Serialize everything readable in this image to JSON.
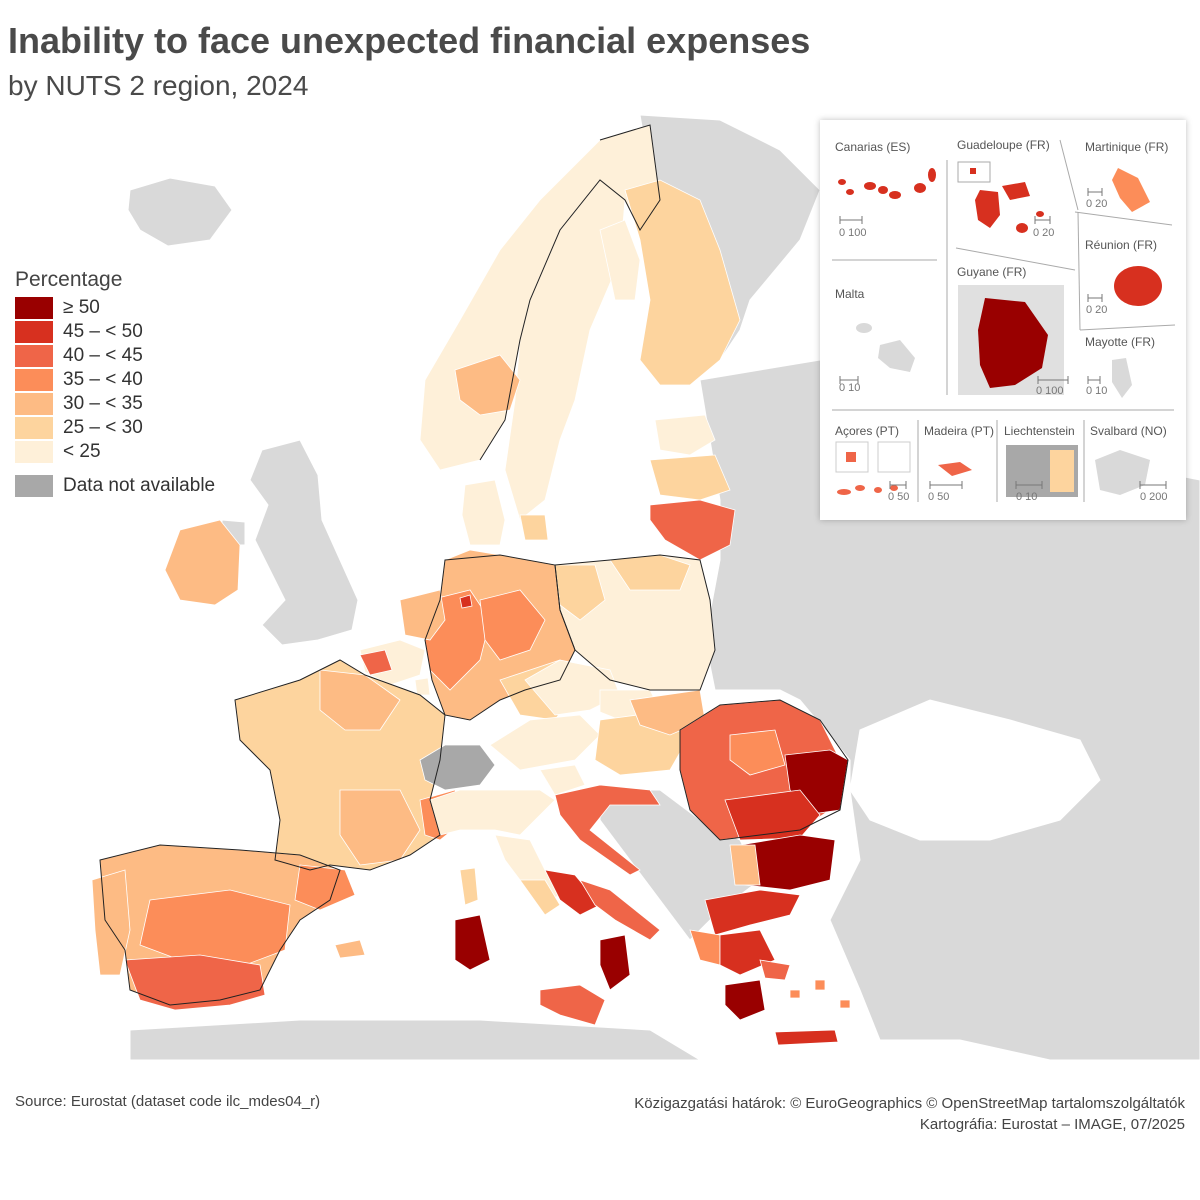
{
  "title": "Inability to face unexpected financial expenses",
  "subtitle": "by NUTS 2 region, 2024",
  "legend": {
    "title": "Percentage",
    "items": [
      {
        "label": "≥ 50",
        "color": "#990000"
      },
      {
        "label": "45 – < 50",
        "color": "#d7301f"
      },
      {
        "label": "40 – < 45",
        "color": "#ef6548"
      },
      {
        "label": "35 – < 40",
        "color": "#fc8d59"
      },
      {
        "label": "30 – < 35",
        "color": "#fdbb84"
      },
      {
        "label": "25 – < 30",
        "color": "#fdd49e"
      },
      {
        "label": "< 25",
        "color": "#fef0d9"
      }
    ],
    "na": {
      "label": "Data not available",
      "color": "#a8a8a8"
    }
  },
  "insets": {
    "canarias": {
      "name": "Canarias (ES)",
      "scale": "0  100"
    },
    "guadeloupe": {
      "name": "Guadeloupe (FR)",
      "scale": "0  20"
    },
    "martinique": {
      "name": "Martinique (FR)",
      "scale": "0  20"
    },
    "reunion": {
      "name": "Réunion (FR)",
      "scale": "0  20"
    },
    "malta": {
      "name": "Malta",
      "scale": "0  10"
    },
    "guyane": {
      "name": "Guyane (FR)",
      "scale": "0    100"
    },
    "mayotte": {
      "name": "Mayotte (FR)",
      "scale": "0 10"
    },
    "acores": {
      "name": "Açores (PT)",
      "scale": "0  50"
    },
    "madeira": {
      "name": "Madeira (PT)",
      "scale": "0      50"
    },
    "liechtenstein": {
      "name": "Liechtenstein",
      "scale": "0  10"
    },
    "svalbard": {
      "name": "Svalbard (NO)",
      "scale": "0    200"
    }
  },
  "footer": {
    "source": "Source: Eurostat (dataset code ilc_mdes04_r)",
    "boundaries": "Közigazgatási határok: © EuroGeographics © OpenStreetMap tartalomszolgáltatók",
    "cartography": "Kartográfia: Eurostat – IMAGE, 07/2025"
  }
}
